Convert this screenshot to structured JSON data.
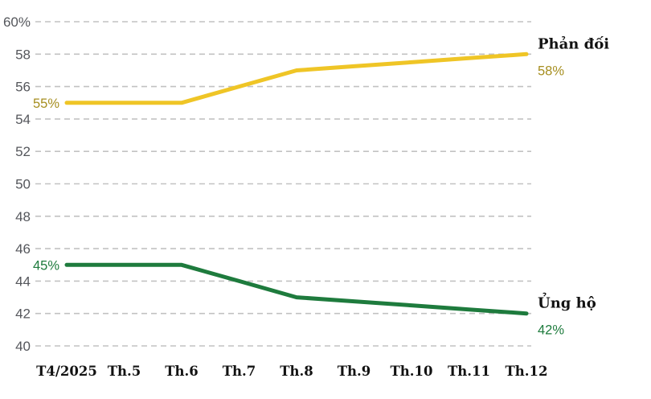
{
  "chart_data": {
    "type": "line",
    "title": "",
    "xlabel": "",
    "ylabel": "",
    "categories": [
      "T4/2025",
      "Th.5",
      "Th.6",
      "Th.7",
      "Th.8",
      "Th.9",
      "Th.10",
      "Th.11",
      "Th.12"
    ],
    "series": [
      {
        "name": "Phản đối",
        "values": [
          55,
          55,
          55,
          56,
          57,
          57.25,
          57.5,
          57.75,
          58
        ],
        "line_color": "#EFC526",
        "label_color": "#A68E1F",
        "start_label": "55%",
        "end_label": "58%"
      },
      {
        "name": "Ủng hộ",
        "values": [
          45,
          45,
          45,
          44,
          43,
          42.75,
          42.5,
          42.25,
          42
        ],
        "line_color": "#1E7B3D",
        "label_color": "#1E7B3D",
        "start_label": "45%",
        "end_label": "42%"
      }
    ],
    "ylim": [
      40,
      60
    ],
    "yticks": [
      60,
      58,
      56,
      54,
      52,
      50,
      48,
      46,
      44,
      42,
      40
    ],
    "ytick_labels": [
      "60%",
      "58",
      "56",
      "54",
      "52",
      "50",
      "48",
      "46",
      "44",
      "42",
      "40"
    ],
    "grid": "horizontal-dashed",
    "gridline_color": "#C2C2C2",
    "legend_position": "line-end-labels"
  }
}
